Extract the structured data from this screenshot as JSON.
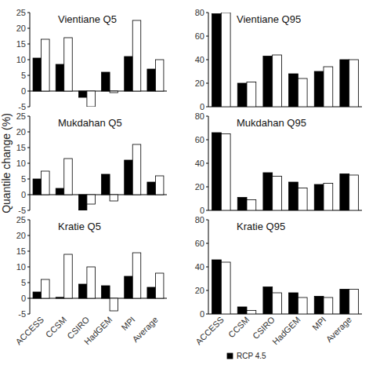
{
  "chart_data": [
    {
      "type": "bar",
      "title": "Vientiane Q5",
      "categories": [
        null,
        null,
        null,
        null,
        null,
        null
      ],
      "series": [
        {
          "name": "RCP 4.5",
          "color": "#000000",
          "values": [
            10.5,
            8.5,
            -2,
            6,
            11,
            7
          ]
        },
        {
          "color": "#ffffff",
          "values": [
            16.5,
            17,
            -5,
            -0.5,
            22.5,
            10
          ]
        }
      ],
      "ylim": [
        -5,
        25
      ],
      "yticks": [
        -5,
        0,
        5,
        10,
        15,
        20,
        25
      ]
    },
    {
      "type": "bar",
      "title": "Vientiane Q95",
      "categories": [
        null,
        null,
        null,
        null,
        null,
        null
      ],
      "series": [
        {
          "name": "RCP 4.5",
          "color": "#000000",
          "values": [
            79,
            20,
            43,
            28,
            30,
            40
          ]
        },
        {
          "color": "#ffffff",
          "values": [
            80,
            21,
            44,
            24,
            34,
            40
          ]
        }
      ],
      "ylim": [
        0,
        80
      ],
      "yticks": [
        0,
        20,
        40,
        60,
        80
      ]
    },
    {
      "type": "bar",
      "title": "Mukdahan Q5",
      "ylabel": "Quantile change (%)",
      "categories": [
        null,
        null,
        null,
        null,
        null,
        null
      ],
      "series": [
        {
          "name": "RCP 4.5",
          "color": "#000000",
          "values": [
            5,
            2,
            -5,
            6.5,
            11,
            4
          ]
        },
        {
          "color": "#ffffff",
          "values": [
            7.5,
            11.5,
            -3,
            -2,
            16,
            6
          ]
        }
      ],
      "ylim": [
        -5,
        25
      ],
      "yticks": [
        -5,
        0,
        5,
        10,
        15,
        20,
        25
      ]
    },
    {
      "type": "bar",
      "title": "Mukdahan Q95",
      "categories": [
        null,
        null,
        null,
        null,
        null,
        null
      ],
      "series": [
        {
          "name": "RCP 4.5",
          "color": "#000000",
          "values": [
            66,
            11,
            32,
            24,
            22,
            31
          ]
        },
        {
          "color": "#ffffff",
          "values": [
            65,
            9,
            29,
            19,
            23,
            30
          ]
        }
      ],
      "ylim": [
        0,
        80
      ],
      "yticks": [
        0,
        20,
        40,
        60,
        80
      ]
    },
    {
      "type": "bar",
      "title": "Kratie Q5",
      "categories": [
        "ACCESS",
        "CCSM",
        "CSIRO",
        "HadGEM",
        "MPI",
        "Average"
      ],
      "series": [
        {
          "name": "RCP 4.5",
          "color": "#000000",
          "values": [
            2,
            0.3,
            4.5,
            4,
            7,
            3.5
          ]
        },
        {
          "color": "#ffffff",
          "values": [
            6,
            14,
            10,
            -4,
            14.5,
            8
          ]
        }
      ],
      "ylim": [
        -5,
        25
      ],
      "yticks": [
        -5,
        0,
        5,
        10,
        15,
        20,
        25
      ]
    },
    {
      "type": "bar",
      "title": "Kratie Q95",
      "legend": "bottom",
      "categories": [
        "ACCESS",
        "CCSM",
        "CSIRO",
        "HadGEM",
        "MPI",
        "Average"
      ],
      "series": [
        {
          "name": "RCP 4.5",
          "color": "#000000",
          "values": [
            46,
            6,
            23,
            18,
            15,
            21
          ]
        },
        {
          "color": "#ffffff",
          "values": [
            44,
            3,
            18,
            14,
            14,
            21
          ]
        }
      ],
      "ylim": [
        0,
        80
      ],
      "yticks": [
        0,
        20,
        40,
        60,
        80
      ]
    }
  ]
}
